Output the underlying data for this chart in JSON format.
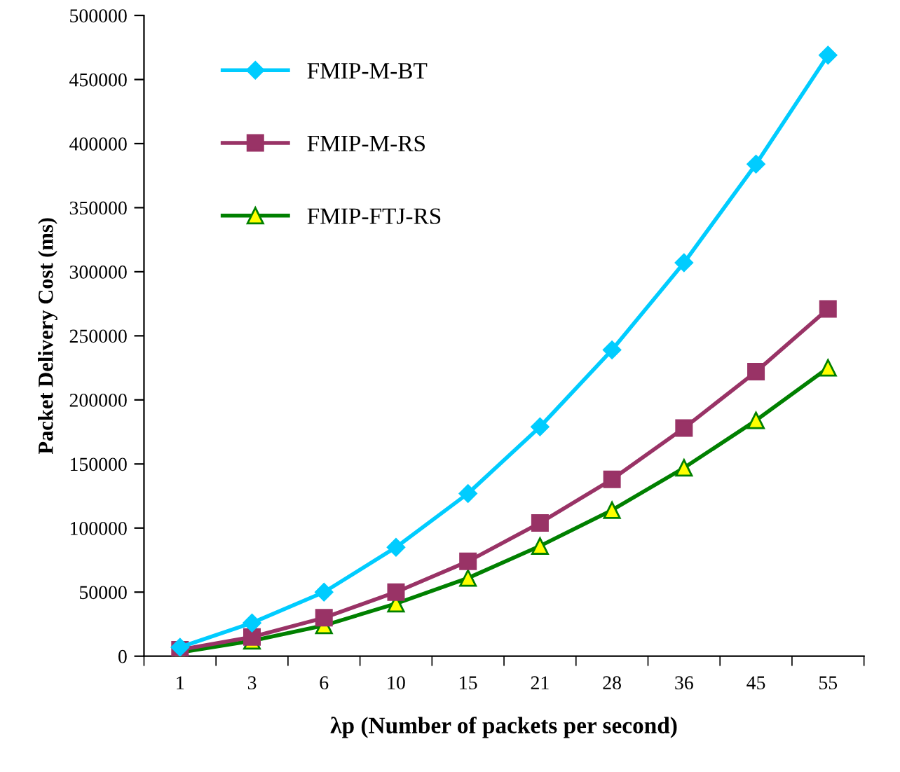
{
  "chart_data": {
    "type": "line",
    "xlabel": "λp (Number of packets per second)",
    "ylabel": "Packet Delivery Cost (ms)",
    "categories": [
      "1",
      "3",
      "6",
      "10",
      "15",
      "21",
      "28",
      "36",
      "45",
      "55"
    ],
    "series": [
      {
        "name": "FMIP-M-BT",
        "color": "#00ccff",
        "marker": "diamond",
        "values": [
          7000,
          26000,
          50000,
          85000,
          127000,
          179000,
          239000,
          307000,
          384000,
          469000
        ]
      },
      {
        "name": "FMIP-M-RS",
        "color": "#993366",
        "marker": "square",
        "values": [
          5000,
          15000,
          30000,
          50000,
          74000,
          104000,
          138000,
          178000,
          222000,
          271000
        ]
      },
      {
        "name": "FMIP-FTJ-RS",
        "color": "#008000",
        "marker": "triangle",
        "values": [
          3000,
          12000,
          24000,
          41000,
          61000,
          86000,
          114000,
          147000,
          184000,
          225000
        ]
      }
    ],
    "ylim": [
      0,
      500000
    ],
    "yticks": [
      0,
      50000,
      100000,
      150000,
      200000,
      250000,
      300000,
      350000,
      400000,
      450000,
      500000
    ],
    "grid": false,
    "legend": "top left"
  }
}
